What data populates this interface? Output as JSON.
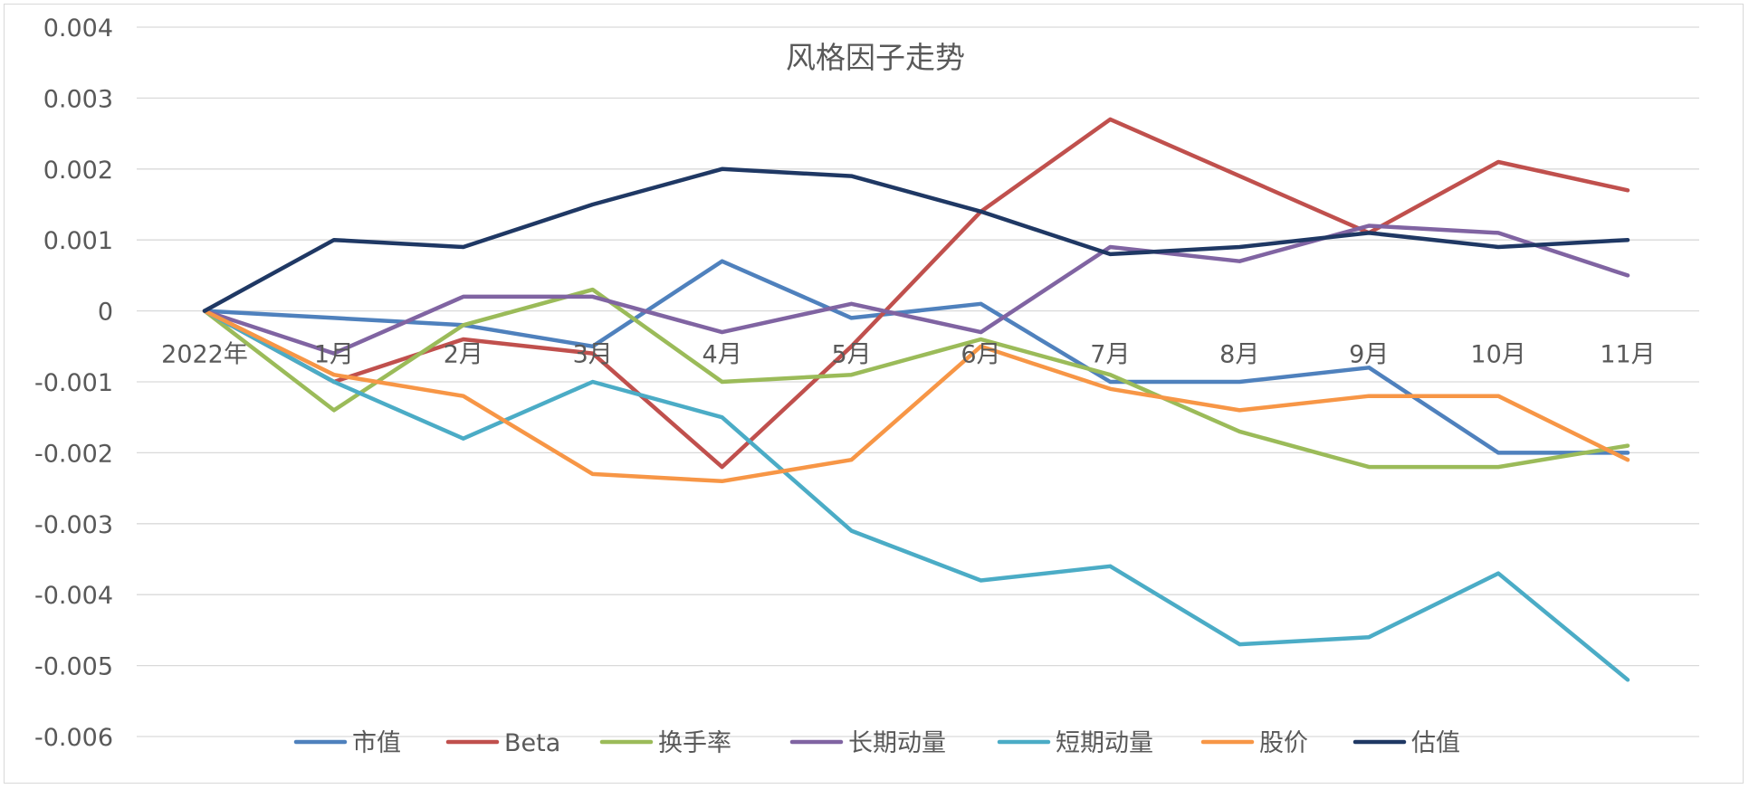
{
  "chart_data": {
    "type": "line",
    "title": "风格因子走势",
    "xlabel": "",
    "ylabel": "",
    "categories": [
      "2022年",
      "1月",
      "2月",
      "3月",
      "4月",
      "5月",
      "6月",
      "7月",
      "8月",
      "9月",
      "10月",
      "11月"
    ],
    "ylim": [
      -0.006,
      0.004
    ],
    "yticks": [
      0.004,
      0.003,
      0.002,
      0.001,
      0,
      -0.001,
      -0.002,
      -0.003,
      -0.004,
      -0.005,
      -0.006
    ],
    "ytick_labels": [
      "0.004",
      "0.003",
      "0.002",
      "0.001",
      "0",
      "-0.001",
      "-0.002",
      "-0.003",
      "-0.004",
      "-0.005",
      "-0.006"
    ],
    "grid": true,
    "legend_position": "bottom",
    "series": [
      {
        "name": "市值",
        "color": "#4f81bd",
        "values": [
          0,
          -0.0001,
          -0.0002,
          -0.0005,
          0.0007,
          -0.0001,
          0.0001,
          -0.001,
          -0.001,
          -0.0008,
          -0.002,
          -0.002
        ]
      },
      {
        "name": "Beta",
        "color": "#c0504d",
        "values": [
          0,
          -0.001,
          -0.0004,
          -0.0006,
          -0.0022,
          -0.0005,
          0.0014,
          0.0027,
          0.0019,
          0.0011,
          0.0021,
          0.0017
        ]
      },
      {
        "name": "换手率",
        "color": "#9bbb59",
        "values": [
          0,
          -0.0014,
          -0.0002,
          0.0003,
          -0.001,
          -0.0009,
          -0.0004,
          -0.0009,
          -0.0017,
          -0.0022,
          -0.0022,
          -0.0019
        ]
      },
      {
        "name": "长期动量",
        "color": "#8064a2",
        "values": [
          0,
          -0.0006,
          0.0002,
          0.0002,
          -0.0003,
          0.0001,
          -0.0003,
          0.0009,
          0.0007,
          0.0012,
          0.0011,
          0.0005
        ]
      },
      {
        "name": "短期动量",
        "color": "#4bacc6",
        "values": [
          0,
          -0.001,
          -0.0018,
          -0.001,
          -0.0015,
          -0.0031,
          -0.0038,
          -0.0036,
          -0.0047,
          -0.0046,
          -0.0037,
          -0.0052
        ]
      },
      {
        "name": "股价",
        "color": "#f79646",
        "values": [
          0,
          -0.0009,
          -0.0012,
          -0.0023,
          -0.0024,
          -0.0021,
          -0.0005,
          -0.0011,
          -0.0014,
          -0.0012,
          -0.0012,
          -0.0021
        ]
      },
      {
        "name": "估值",
        "color": "#1f3864",
        "values": [
          0,
          0.001,
          0.0009,
          0.0015,
          0.002,
          0.0019,
          0.0014,
          0.0008,
          0.0009,
          0.0011,
          0.0009,
          0.001
        ]
      }
    ]
  }
}
